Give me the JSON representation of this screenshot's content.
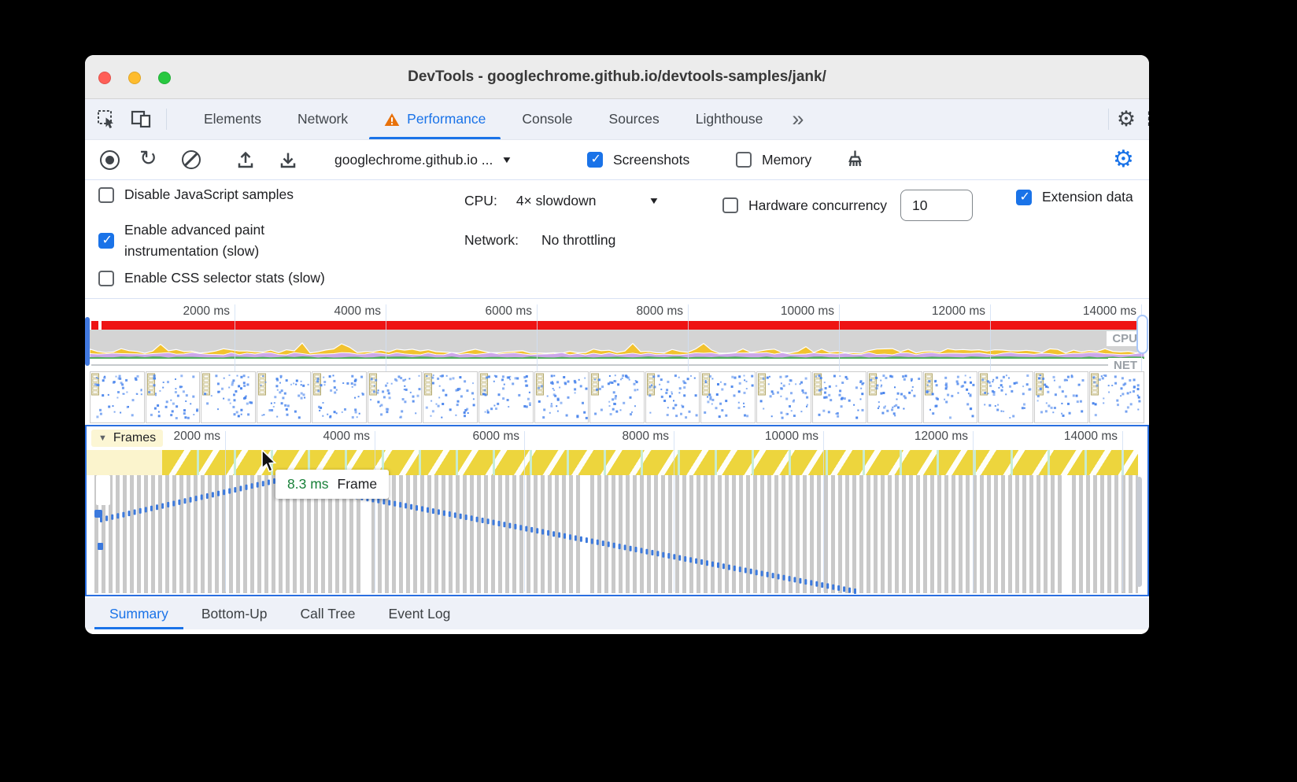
{
  "window_title": "DevTools - googlechrome.github.io/devtools-samples/jank/",
  "tab_strip": {
    "tabs": [
      {
        "label": "Elements",
        "active": false,
        "warning": false
      },
      {
        "label": "Network",
        "active": false,
        "warning": false
      },
      {
        "label": "Performance",
        "active": true,
        "warning": true
      },
      {
        "label": "Console",
        "active": false,
        "warning": false
      },
      {
        "label": "Sources",
        "active": false,
        "warning": false
      },
      {
        "label": "Lighthouse",
        "active": false,
        "warning": false
      }
    ],
    "overflow": "»"
  },
  "toolbar": {
    "url_selector": "googlechrome.github.io ...",
    "screenshots_label": "Screenshots",
    "screenshots_checked": true,
    "memory_label": "Memory",
    "memory_checked": false
  },
  "settings_pane": {
    "disable_js_label": "Disable JavaScript samples",
    "disable_js_checked": false,
    "paint_label": "Enable advanced paint instrumentation (slow)",
    "paint_checked": true,
    "css_stats_label": "Enable CSS selector stats (slow)",
    "css_stats_checked": false,
    "cpu_label": "CPU:",
    "cpu_value": "4× slowdown",
    "network_label": "Network:",
    "network_value": "No throttling",
    "hardware_label": "Hardware concurrency",
    "hardware_checked": false,
    "hardware_value": "10",
    "extension_label": "Extension data",
    "extension_checked": true
  },
  "ruler_ticks": [
    "2000 ms",
    "4000 ms",
    "6000 ms",
    "8000 ms",
    "10000 ms",
    "12000 ms",
    "14000 ms"
  ],
  "overview": {
    "cpu_label": "CPU",
    "net_label": "NET"
  },
  "frames_track": {
    "collapse_glyph": "▼",
    "label": "Frames"
  },
  "tooltip": {
    "value": "8.3 ms",
    "label": "Frame"
  },
  "bottom_tabs": {
    "tabs": [
      {
        "label": "Summary",
        "active": true
      },
      {
        "label": "Bottom-Up",
        "active": false
      },
      {
        "label": "Call Tree",
        "active": false
      },
      {
        "label": "Event Log",
        "active": false
      }
    ]
  },
  "colors": {
    "accent": "#1a73e8",
    "warning_orange": "#e8710a",
    "long_task_red": "#ee1414",
    "frames_yellow": "#edd53d",
    "cpu_gray": "#d4d4d4",
    "cpu_yellow": "#f2c22e",
    "cpu_purple": "#cda7ea",
    "cpu_green": "#4fae5c",
    "dot_blue": "#4a85ec",
    "curve_blue": "#3b79dd",
    "tooltip_green": "#188038"
  }
}
